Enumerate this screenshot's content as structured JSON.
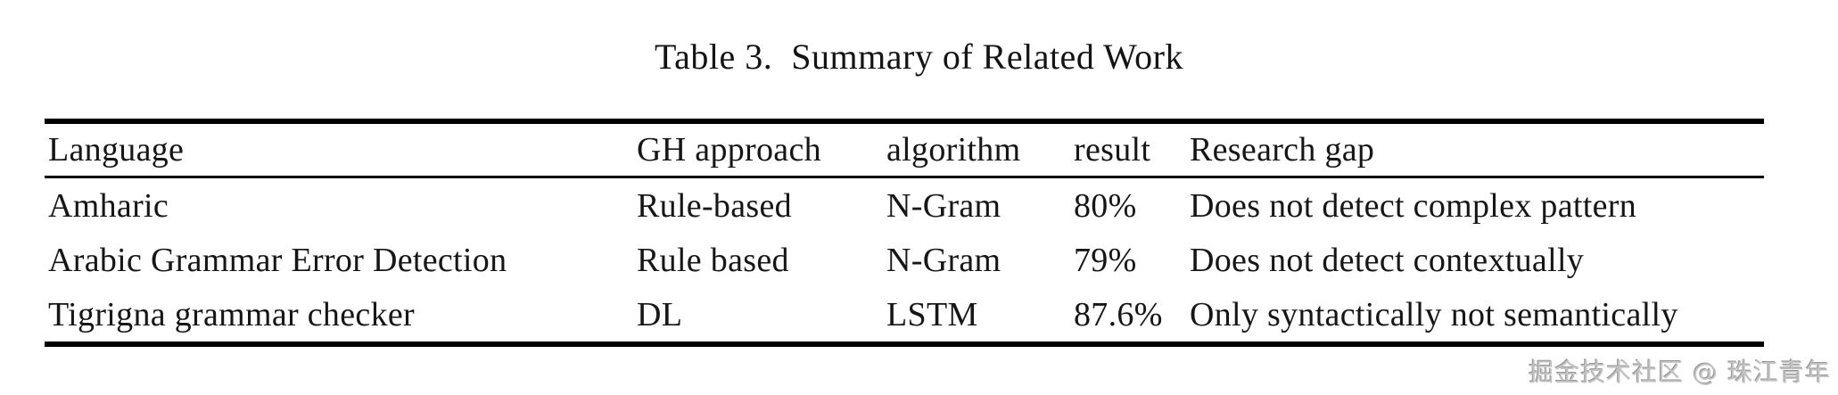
{
  "title": "Table 3.  Summary of Related Work",
  "table": {
    "columns": [
      "Language",
      "GH approach",
      "algorithm",
      "result",
      "Research gap"
    ],
    "rows": [
      [
        "Amharic",
        "Rule-based",
        "N-Gram",
        "80%",
        "Does not detect complex pattern"
      ],
      [
        "Arabic Grammar Error Detection",
        "Rule based",
        "N-Gram",
        "79%",
        "Does not detect contextually"
      ],
      [
        "Tigrigna grammar checker",
        "DL",
        "LSTM",
        "87.6%",
        "Only syntactically not semantically"
      ]
    ]
  },
  "watermark": "掘金技术社区 @ 珠江青年",
  "colors": {
    "text": "#161616",
    "rule": "#000000",
    "watermark_gray": "#c3c3c3",
    "background": "#ffffff"
  }
}
